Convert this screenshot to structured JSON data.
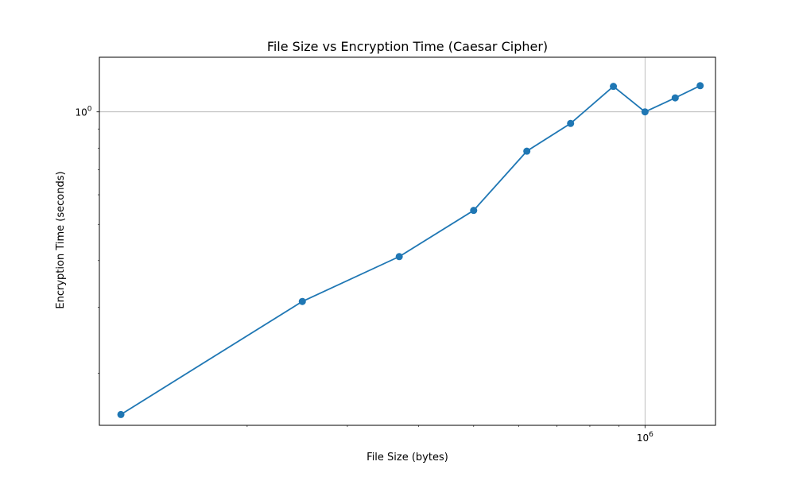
{
  "chart_data": {
    "type": "line",
    "title": "File Size vs Encryption Time (Caesar Cipher)",
    "xlabel": "File Size (bytes)",
    "ylabel": "Encryption Time (seconds)",
    "x_scale": "log",
    "y_scale": "log",
    "xlim": [
      110000,
      1330000
    ],
    "ylim": [
      0.145,
      1.4
    ],
    "x_major_ticks": [
      {
        "value": 1000000,
        "base": "10",
        "exp": "6"
      }
    ],
    "x_minor_ticks": [
      200000,
      300000,
      400000,
      500000,
      600000,
      700000,
      800000,
      900000
    ],
    "y_major_ticks": [
      {
        "value": 1,
        "base": "10",
        "exp": "0"
      }
    ],
    "y_minor_ticks": [
      0.2,
      0.3,
      0.4,
      0.5,
      0.6,
      0.7,
      0.8,
      0.9
    ],
    "grid": "major",
    "series": [
      {
        "color": "#1f77b4",
        "x": [
          120000,
          250000,
          370000,
          500000,
          620000,
          740000,
          880000,
          1000000,
          1130000,
          1250000
        ],
        "y": [
          0.155,
          0.311,
          0.41,
          0.545,
          0.785,
          0.931,
          1.17,
          1.0,
          1.09,
          1.175
        ]
      }
    ]
  }
}
